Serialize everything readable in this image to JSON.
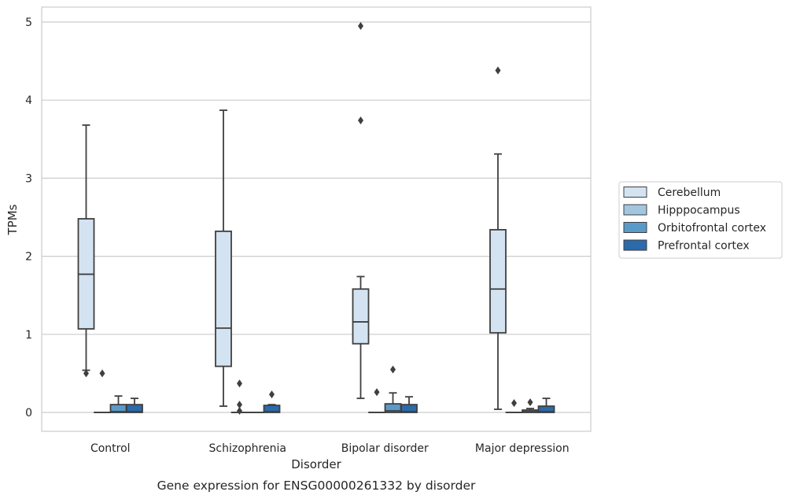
{
  "chart_data": {
    "type": "box",
    "title": "",
    "caption": "Gene expression for ENSG00000261332 by disorder",
    "xlabel": "Disorder",
    "ylabel": "TPMs",
    "ylim": [
      -0.24,
      5.2
    ],
    "yticks": [
      0,
      1,
      2,
      3,
      4,
      5
    ],
    "grid": "horizontal",
    "legend_position": "right",
    "categories": [
      "Control",
      "Schizophrenia",
      "Bipolar disorder",
      "Major depression"
    ],
    "series": [
      {
        "name": "Cerebellum",
        "color": "#d4e3f2",
        "boxes": [
          {
            "q1": 1.07,
            "median": 1.77,
            "q3": 2.48,
            "whislo": 0.54,
            "whishi": 3.68,
            "fliers": [
              0.5
            ]
          },
          {
            "q1": 0.59,
            "median": 1.08,
            "q3": 2.32,
            "whislo": 0.08,
            "whishi": 3.87,
            "fliers": []
          },
          {
            "q1": 0.88,
            "median": 1.16,
            "q3": 1.58,
            "whislo": 0.18,
            "whishi": 1.74,
            "fliers": [
              3.74,
              4.95
            ]
          },
          {
            "q1": 1.02,
            "median": 1.58,
            "q3": 2.34,
            "whislo": 0.04,
            "whishi": 3.31,
            "fliers": [
              4.38
            ]
          }
        ]
      },
      {
        "name": "Hipppocampus",
        "color": "#a3c6df",
        "boxes": [
          {
            "q1": 0,
            "median": 0,
            "q3": 0,
            "whislo": 0,
            "whishi": 0,
            "fliers": [
              0.5
            ]
          },
          {
            "q1": 0,
            "median": 0,
            "q3": 0,
            "whislo": 0,
            "whishi": 0,
            "fliers": [
              0.02,
              0.1,
              0.37
            ]
          },
          {
            "q1": 0,
            "median": 0,
            "q3": 0,
            "whislo": 0,
            "whishi": 0,
            "fliers": [
              0.26
            ]
          },
          {
            "q1": 0,
            "median": 0,
            "q3": 0,
            "whislo": 0,
            "whishi": 0,
            "fliers": [
              0.12
            ]
          }
        ]
      },
      {
        "name": "Orbitofrontal cortex",
        "color": "#5a9ac9",
        "boxes": [
          {
            "q1": 0,
            "median": 0.01,
            "q3": 0.1,
            "whislo": 0,
            "whishi": 0.21,
            "fliers": []
          },
          {
            "q1": 0,
            "median": 0,
            "q3": 0,
            "whislo": 0,
            "whishi": 0,
            "fliers": []
          },
          {
            "q1": 0,
            "median": 0.02,
            "q3": 0.11,
            "whislo": 0,
            "whishi": 0.25,
            "fliers": [
              0.55
            ]
          },
          {
            "q1": 0,
            "median": 0.01,
            "q3": 0.03,
            "whislo": 0,
            "whishi": 0.05,
            "fliers": [
              0.13
            ]
          }
        ]
      },
      {
        "name": "Prefrontal cortex",
        "color": "#2b6aab",
        "boxes": [
          {
            "q1": 0,
            "median": 0.01,
            "q3": 0.1,
            "whislo": 0,
            "whishi": 0.18,
            "fliers": []
          },
          {
            "q1": 0,
            "median": 0.01,
            "q3": 0.09,
            "whislo": 0,
            "whishi": 0.1,
            "fliers": [
              0.23
            ]
          },
          {
            "q1": 0,
            "median": 0.01,
            "q3": 0.1,
            "whislo": 0,
            "whishi": 0.2,
            "fliers": []
          },
          {
            "q1": 0,
            "median": 0.01,
            "q3": 0.08,
            "whislo": 0,
            "whishi": 0.18,
            "fliers": []
          }
        ]
      }
    ]
  }
}
